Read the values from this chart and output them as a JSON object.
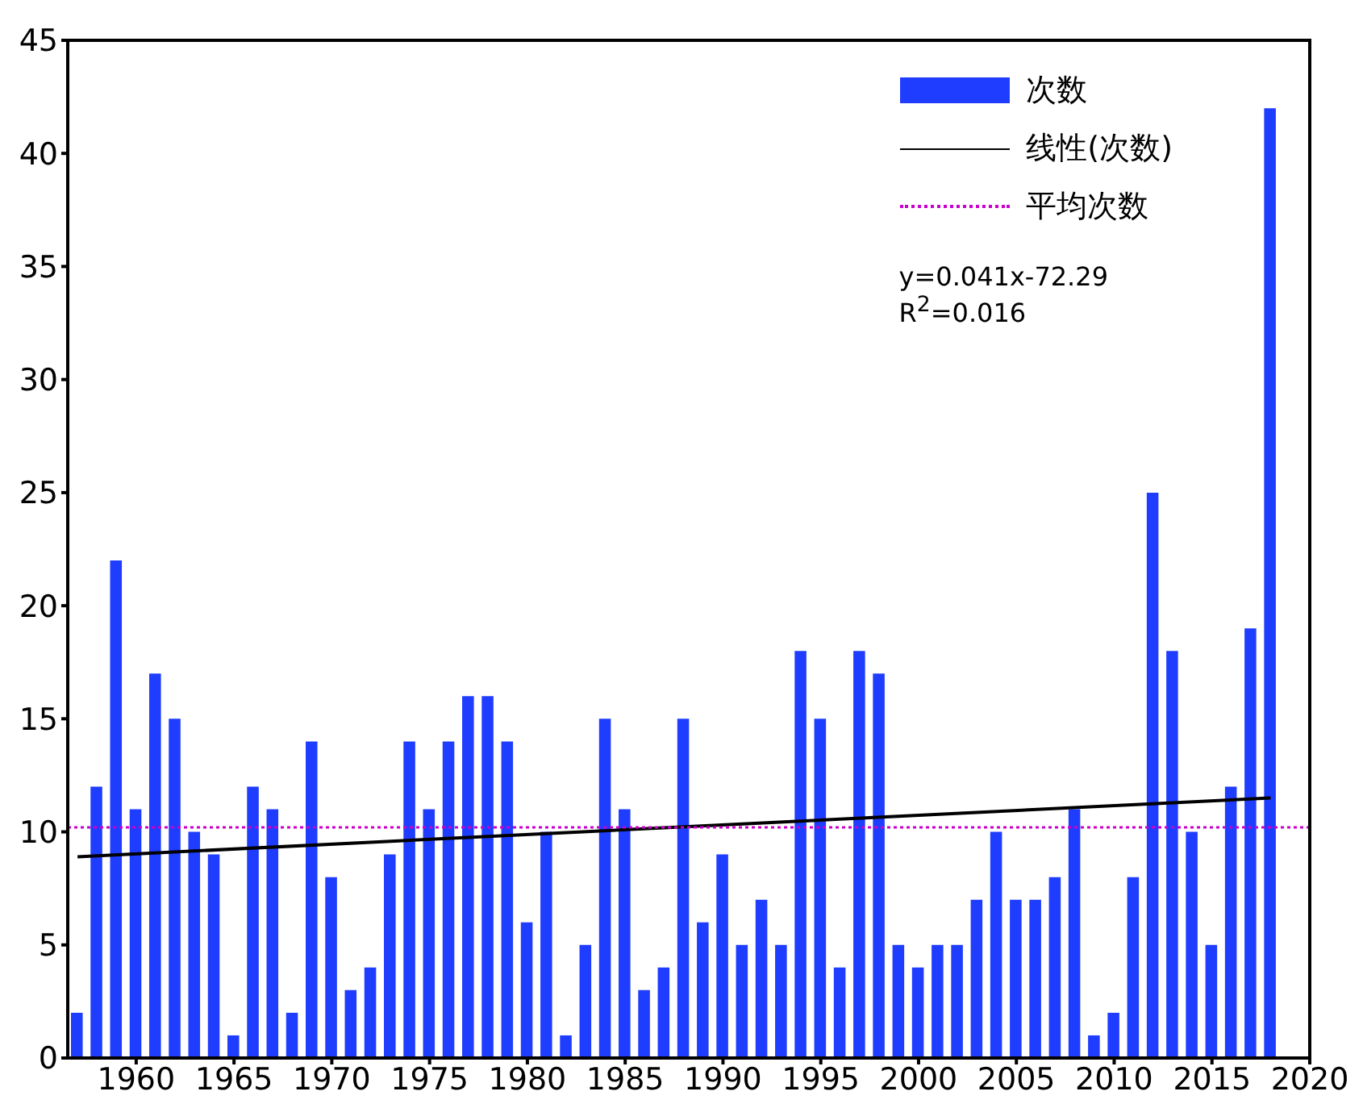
{
  "chart_data": {
    "type": "bar",
    "x": [
      1957,
      1958,
      1959,
      1960,
      1961,
      1962,
      1963,
      1964,
      1965,
      1966,
      1967,
      1968,
      1969,
      1970,
      1971,
      1972,
      1973,
      1974,
      1975,
      1976,
      1977,
      1978,
      1979,
      1980,
      1981,
      1982,
      1983,
      1984,
      1985,
      1986,
      1987,
      1988,
      1989,
      1990,
      1991,
      1992,
      1993,
      1994,
      1995,
      1996,
      1997,
      1998,
      1999,
      2000,
      2001,
      2002,
      2003,
      2004,
      2005,
      2006,
      2007,
      2008,
      2009,
      2010,
      2011,
      2012,
      2013,
      2014,
      2015,
      2016,
      2017,
      2018
    ],
    "series": [
      {
        "name": "次数",
        "color": "#1f3dff",
        "values": [
          2,
          12,
          22,
          11,
          17,
          15,
          10,
          9,
          1,
          12,
          11,
          2,
          14,
          8,
          3,
          4,
          9,
          14,
          11,
          14,
          16,
          16,
          14,
          6,
          10,
          1,
          5,
          15,
          11,
          3,
          4,
          15,
          6,
          9,
          5,
          7,
          5,
          18,
          15,
          4,
          18,
          17,
          5,
          4,
          5,
          5,
          7,
          10,
          7,
          7,
          8,
          11,
          1,
          2,
          8,
          25,
          18,
          10,
          5,
          12,
          19,
          42
        ]
      },
      {
        "name": "线性(次数)",
        "type": "line",
        "color": "#000000",
        "x": [
          1957,
          2018
        ],
        "values": [
          8.9,
          11.5
        ]
      }
    ],
    "ref_lines": [
      {
        "axis": "y",
        "value": 10.2,
        "label": "平均次数",
        "color": "#cc00cc",
        "line_style": "dotted"
      }
    ],
    "annotations": [
      "y=0.041x-72.29",
      "R$^{2}$=0.016"
    ],
    "xlim": [
      1956.5,
      2020
    ],
    "xticks": [
      1960,
      1965,
      1970,
      1975,
      1980,
      1985,
      1990,
      1995,
      2000,
      2005,
      2010,
      2015,
      2020
    ],
    "ylim": [
      0,
      45
    ],
    "yticks": [
      0,
      5,
      10,
      15,
      20,
      25,
      30,
      35,
      40,
      45
    ],
    "legend": "top right",
    "marker": "none"
  }
}
